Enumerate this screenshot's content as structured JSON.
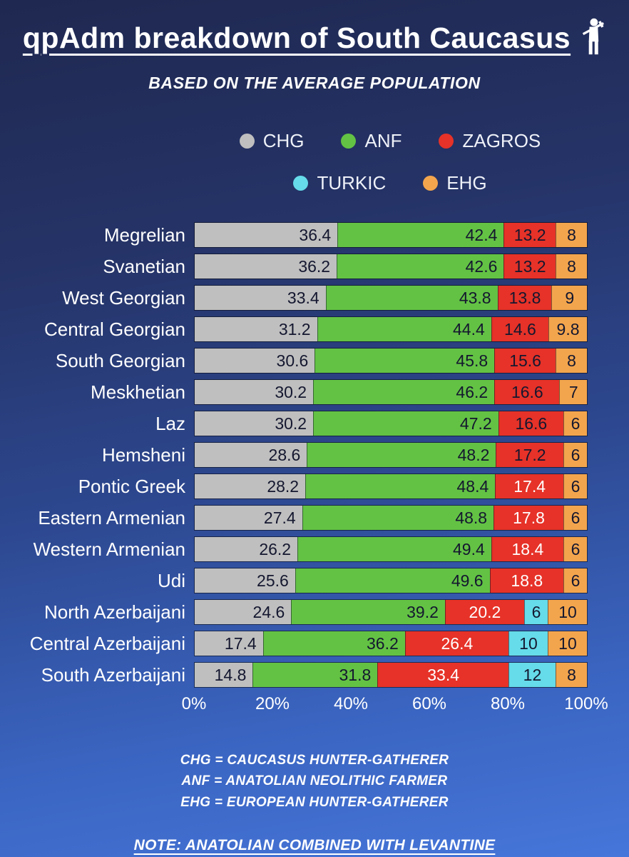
{
  "header": {
    "title": "qpAdm breakdown of South Caucasus",
    "subtitle": "BASED ON THE AVERAGE POPULATION"
  },
  "legend": {
    "rows": [
      [
        {
          "label": "CHG",
          "color": "#bfbfbf"
        },
        {
          "label": "ANF",
          "color": "#63c244"
        },
        {
          "label": "ZAGROS",
          "color": "#e63228"
        }
      ],
      [
        {
          "label": "TURKIC",
          "color": "#66dbe9"
        },
        {
          "label": "EHG",
          "color": "#f3a54d"
        }
      ]
    ]
  },
  "chart_data": {
    "type": "bar",
    "stacked": true,
    "orientation": "horizontal",
    "title": "qpAdm breakdown of South Caucasus",
    "subtitle": "BASED ON THE AVERAGE POPULATION",
    "xlim": [
      0,
      100
    ],
    "x_ticks": [
      "0%",
      "20%",
      "40%",
      "60%",
      "80%",
      "100%"
    ],
    "x_tick_positions": [
      0,
      20,
      40,
      60,
      80,
      100
    ],
    "legend_position": "top",
    "categories": [
      "Megrelian",
      "Svanetian",
      "West Georgian",
      "Central Georgian",
      "South Georgian",
      "Meskhetian",
      "Laz",
      "Hemsheni",
      "Pontic Greek",
      "Eastern Armenian",
      "Western Armenian",
      "Udi",
      "North Azerbaijani",
      "Central Azerbaijani",
      "South Azerbaijani"
    ],
    "series": [
      {
        "name": "CHG",
        "color": "#bfbfbf",
        "value_align": "right",
        "values": [
          36.4,
          36.2,
          33.4,
          31.2,
          30.6,
          30.2,
          30.2,
          28.6,
          28.2,
          27.4,
          26.2,
          25.6,
          24.6,
          17.4,
          14.8
        ]
      },
      {
        "name": "ANF",
        "color": "#63c244",
        "value_align": "right",
        "values": [
          42.4,
          42.6,
          43.8,
          44.4,
          45.8,
          46.2,
          47.2,
          48.2,
          48.4,
          48.8,
          49.4,
          49.6,
          39.2,
          36.2,
          31.8
        ]
      },
      {
        "name": "ZAGROS",
        "color": "#e63228",
        "value_align": "center",
        "light_text_min": 17.4,
        "values": [
          13.2,
          13.2,
          13.8,
          14.6,
          15.6,
          16.6,
          16.6,
          17.2,
          17.4,
          17.8,
          18.4,
          18.8,
          20.2,
          26.4,
          33.4
        ]
      },
      {
        "name": "TURKIC",
        "color": "#66dbe9",
        "value_align": "center",
        "values": [
          0,
          0,
          0,
          0,
          0,
          0,
          0,
          0,
          0,
          0,
          0,
          0,
          6,
          10,
          12
        ]
      },
      {
        "name": "EHG",
        "color": "#f3a54d",
        "value_align": "center",
        "values": [
          8,
          8,
          9,
          9.8,
          8,
          7,
          6,
          6,
          6,
          6,
          6,
          6,
          10,
          10,
          8
        ]
      }
    ]
  },
  "notes": [
    "CHG = CAUCASUS HUNTER-GATHERER",
    "ANF = ANATOLIAN NEOLITHIC FARMER",
    "EHG = EUROPEAN HUNTER-GATHERER"
  ],
  "footnote": "NOTE: ANATOLIAN COMBINED WITH LEVANTINE"
}
